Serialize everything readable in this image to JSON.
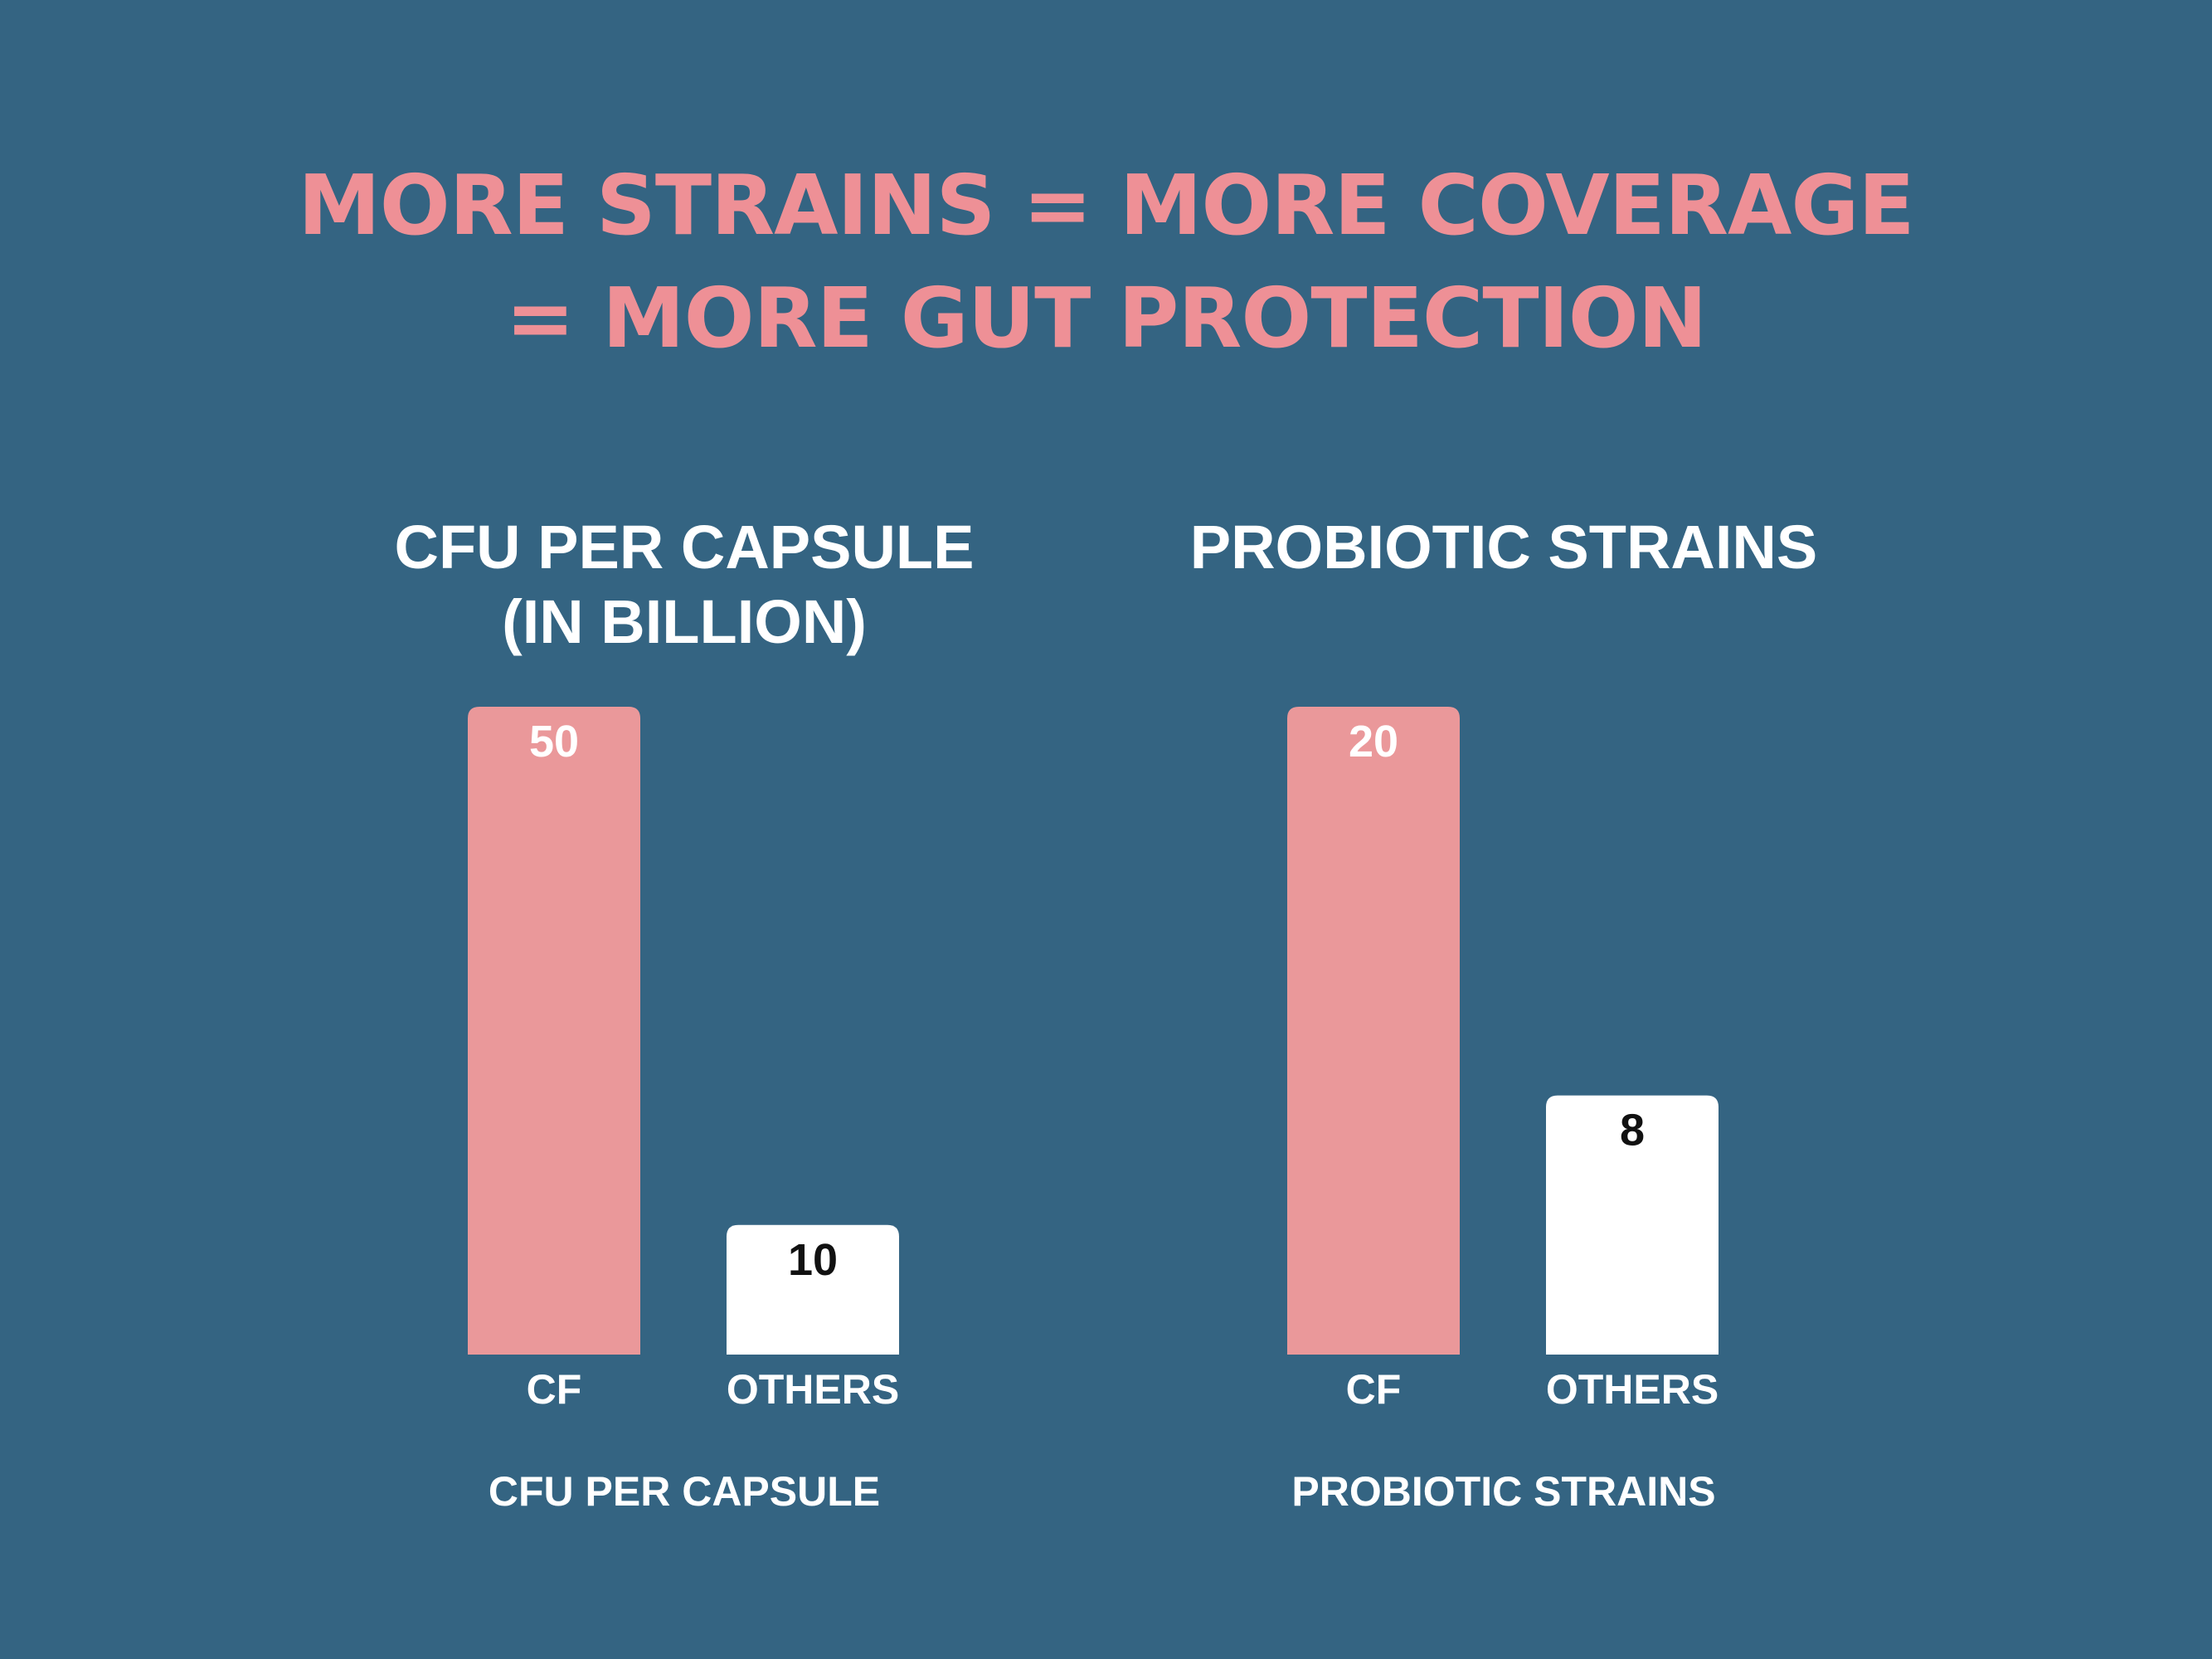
{
  "headline": {
    "line1": "MORE STRAINS = MORE COVERAGE",
    "line2": "= MORE GUT PROTECTION"
  },
  "colors": {
    "background": "#346482",
    "accent": "#ee9096",
    "cf_bar": "#ea989a",
    "others_bar": "#ffffff",
    "text_light": "#ffffff",
    "text_dark": "#111111"
  },
  "chart_data": [
    {
      "type": "bar",
      "title_lines": [
        "CFU PER CAPSULE",
        "(IN BILLION)"
      ],
      "xlabel": "CFU PER CAPSULE",
      "ylabel": "",
      "categories": [
        "CF",
        "OTHERS"
      ],
      "values": [
        50,
        10
      ],
      "ylim": [
        0,
        50
      ],
      "grid": false,
      "legend": "none"
    },
    {
      "type": "bar",
      "title_lines": [
        "PROBIOTIC STRAINS"
      ],
      "xlabel": "PROBIOTIC STRAINS",
      "ylabel": "",
      "categories": [
        "CF",
        "OTHERS"
      ],
      "values": [
        20,
        8
      ],
      "ylim": [
        0,
        20
      ],
      "grid": false,
      "legend": "none"
    }
  ]
}
